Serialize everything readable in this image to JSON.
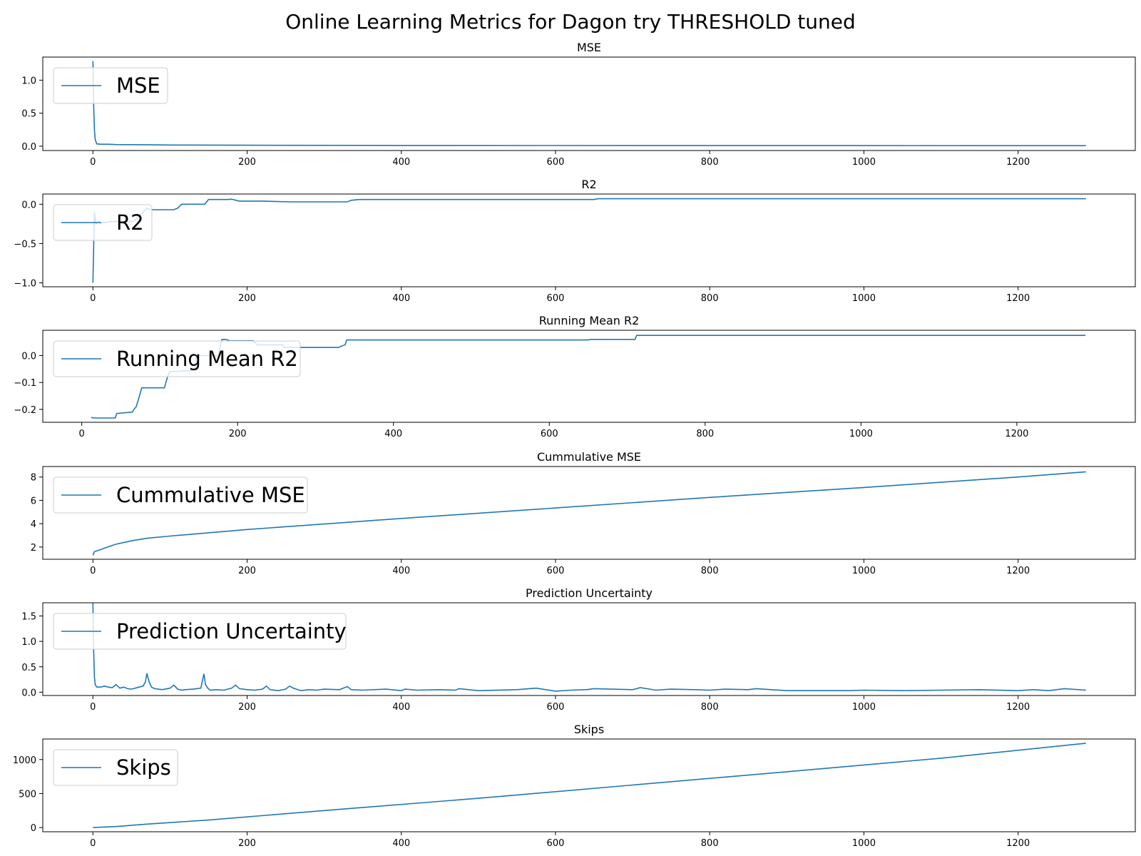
{
  "figure": {
    "title": "Online Learning Metrics for Dagon try THRESHOLD tuned",
    "line_color": "#1f77b4"
  },
  "chart_data": [
    {
      "type": "line",
      "title": "MSE",
      "xlabel": "",
      "ylabel": "",
      "legend": {
        "placement": "upper-left",
        "entries": [
          "MSE"
        ]
      },
      "xlim": [
        -65,
        1352
      ],
      "ylim": [
        -0.065,
        1.35
      ],
      "x_ticks": [
        0,
        200,
        400,
        600,
        800,
        1000,
        1200
      ],
      "y_ticks": [
        0.0,
        0.5,
        1.0
      ],
      "y_tick_labels": [
        "0.0",
        "0.5",
        "1.0"
      ],
      "grid": false,
      "series": [
        {
          "name": "MSE",
          "x": [
            0,
            1,
            2,
            3,
            5,
            10,
            20,
            30,
            50,
            70,
            100,
            200,
            400,
            600,
            800,
            1000,
            1200,
            1288
          ],
          "y": [
            1.29,
            0.6,
            0.25,
            0.1,
            0.035,
            0.03,
            0.03,
            0.025,
            0.024,
            0.022,
            0.018,
            0.015,
            0.012,
            0.011,
            0.01,
            0.009,
            0.008,
            0.008
          ]
        }
      ]
    },
    {
      "type": "line",
      "title": "R2",
      "xlabel": "",
      "ylabel": "",
      "legend": {
        "placement": "upper-left",
        "entries": [
          "R2"
        ]
      },
      "xlim": [
        -65,
        1352
      ],
      "ylim": [
        -1.05,
        0.13
      ],
      "x_ticks": [
        0,
        200,
        400,
        600,
        800,
        1000,
        1200
      ],
      "y_ticks": [
        -1.0,
        -0.5,
        0.0
      ],
      "y_tick_labels": [
        "−1.0",
        "−0.5",
        "0.0"
      ],
      "grid": false,
      "series": [
        {
          "name": "R2",
          "x": [
            0,
            2,
            4,
            8,
            10,
            25,
            30,
            40,
            50,
            55,
            60,
            65,
            70,
            75,
            80,
            105,
            110,
            115,
            145,
            150,
            175,
            180,
            190,
            220,
            255,
            330,
            335,
            345,
            650,
            655,
            1288
          ],
          "y": [
            -1.0,
            -0.1,
            -0.25,
            -0.22,
            -0.24,
            -0.22,
            -0.22,
            -0.22,
            -0.22,
            -0.2,
            -0.15,
            -0.1,
            -0.05,
            -0.07,
            -0.07,
            -0.07,
            -0.05,
            0.0,
            0.0,
            0.06,
            0.06,
            0.065,
            0.04,
            0.04,
            0.03,
            0.03,
            0.05,
            0.06,
            0.06,
            0.07,
            0.07
          ]
        }
      ]
    },
    {
      "type": "line",
      "title": "Running Mean R2",
      "xlabel": "",
      "ylabel": "",
      "legend": {
        "placement": "upper-left",
        "entries": [
          "Running Mean R2"
        ]
      },
      "xlim": [
        -50,
        1352
      ],
      "ylim": [
        -0.248,
        0.094
      ],
      "x_ticks": [
        0,
        200,
        400,
        600,
        800,
        1000,
        1200
      ],
      "y_ticks": [
        -0.2,
        -0.1,
        0.0
      ],
      "y_tick_labels": [
        "−0.2",
        "−0.1",
        "0.0"
      ],
      "grid": false,
      "series": [
        {
          "name": "Running Mean R2",
          "x": [
            12,
            15,
            20,
            25,
            30,
            40,
            43,
            45,
            65,
            67,
            70,
            72,
            74,
            75,
            77,
            106,
            108,
            110,
            113,
            145,
            147,
            175,
            180,
            185,
            190,
            220,
            225,
            258,
            260,
            330,
            333,
            338,
            340,
            650,
            653,
            710,
            712,
            1288
          ],
          "y": [
            -0.23,
            -0.232,
            -0.232,
            -0.232,
            -0.232,
            -0.232,
            -0.232,
            -0.215,
            -0.21,
            -0.2,
            -0.19,
            -0.17,
            -0.15,
            -0.14,
            -0.12,
            -0.12,
            -0.1,
            -0.08,
            -0.06,
            -0.055,
            0.0,
            0.0,
            0.06,
            0.06,
            0.055,
            0.055,
            0.04,
            0.04,
            0.03,
            0.03,
            0.035,
            0.04,
            0.058,
            0.058,
            0.06,
            0.06,
            0.075,
            0.075
          ]
        }
      ]
    },
    {
      "type": "line",
      "title": "Cummulative MSE",
      "xlabel": "",
      "ylabel": "",
      "legend": {
        "placement": "upper-left",
        "entries": [
          "Cummulative MSE"
        ]
      },
      "xlim": [
        -65,
        1352
      ],
      "ylim": [
        0.95,
        8.9
      ],
      "x_ticks": [
        0,
        200,
        400,
        600,
        800,
        1000,
        1200
      ],
      "y_ticks": [
        2,
        4,
        6,
        8
      ],
      "y_tick_labels": [
        "2",
        "4",
        "6",
        "8"
      ],
      "grid": false,
      "series": [
        {
          "name": "Cummulative MSE",
          "x": [
            0,
            1,
            2,
            10,
            20,
            30,
            50,
            70,
            100,
            200,
            400,
            600,
            800,
            1000,
            1200,
            1288
          ],
          "y": [
            1.29,
            1.45,
            1.6,
            1.78,
            2.02,
            2.24,
            2.53,
            2.75,
            2.94,
            3.5,
            4.45,
            5.35,
            6.25,
            7.1,
            8.0,
            8.45
          ]
        }
      ]
    },
    {
      "type": "line",
      "title": "Prediction Uncertainty",
      "xlabel": "",
      "ylabel": "",
      "legend": {
        "placement": "upper-left",
        "entries": [
          "Prediction Uncertainty"
        ]
      },
      "xlim": [
        -65,
        1352
      ],
      "ylim": [
        -0.065,
        1.76
      ],
      "x_ticks": [
        0,
        200,
        400,
        600,
        800,
        1000,
        1200
      ],
      "y_ticks": [
        0.0,
        0.5,
        1.0,
        1.5
      ],
      "y_tick_labels": [
        "0.0",
        "0.5",
        "1.0",
        "1.5"
      ],
      "grid": false,
      "series": [
        {
          "name": "Prediction Uncertainty",
          "x": [
            0,
            1,
            2,
            3,
            5,
            10,
            15,
            20,
            25,
            30,
            35,
            40,
            45,
            50,
            55,
            60,
            65,
            68,
            70,
            73,
            76,
            80,
            90,
            100,
            105,
            110,
            115,
            120,
            130,
            140,
            144,
            146,
            149,
            152,
            160,
            170,
            180,
            185,
            190,
            200,
            210,
            220,
            225,
            230,
            240,
            250,
            255,
            260,
            270,
            280,
            290,
            300,
            320,
            330,
            335,
            350,
            380,
            400,
            405,
            420,
            450,
            470,
            475,
            500,
            550,
            575,
            600,
            620,
            640,
            650,
            700,
            710,
            730,
            750,
            780,
            800,
            820,
            850,
            860,
            900,
            950,
            980,
            1000,
            1050,
            1100,
            1150,
            1200,
            1220,
            1240,
            1260,
            1288
          ],
          "y": [
            1.75,
            0.8,
            0.3,
            0.15,
            0.1,
            0.1,
            0.12,
            0.1,
            0.09,
            0.15,
            0.08,
            0.1,
            0.07,
            0.06,
            0.08,
            0.1,
            0.12,
            0.2,
            0.37,
            0.2,
            0.1,
            0.07,
            0.05,
            0.08,
            0.14,
            0.06,
            0.04,
            0.05,
            0.06,
            0.08,
            0.36,
            0.15,
            0.08,
            0.04,
            0.05,
            0.04,
            0.08,
            0.14,
            0.07,
            0.05,
            0.04,
            0.06,
            0.12,
            0.05,
            0.03,
            0.06,
            0.12,
            0.08,
            0.03,
            0.05,
            0.04,
            0.06,
            0.05,
            0.11,
            0.05,
            0.04,
            0.06,
            0.03,
            0.06,
            0.04,
            0.05,
            0.04,
            0.07,
            0.03,
            0.05,
            0.08,
            0.02,
            0.04,
            0.05,
            0.07,
            0.05,
            0.09,
            0.04,
            0.06,
            0.05,
            0.04,
            0.06,
            0.05,
            0.07,
            0.03,
            0.03,
            0.03,
            0.04,
            0.03,
            0.04,
            0.05,
            0.03,
            0.05,
            0.03,
            0.07,
            0.04
          ]
        }
      ]
    },
    {
      "type": "line",
      "title": "Skips",
      "xlabel": "",
      "ylabel": "",
      "legend": {
        "placement": "upper-left",
        "entries": [
          "Skips"
        ]
      },
      "xlim": [
        -65,
        1352
      ],
      "ylim": [
        -62,
        1302
      ],
      "x_ticks": [
        0,
        200,
        400,
        600,
        800,
        1000,
        1200
      ],
      "y_ticks": [
        0,
        500,
        1000
      ],
      "y_tick_labels": [
        "0",
        "500",
        "1000"
      ],
      "grid": false,
      "series": [
        {
          "name": "Skips",
          "x": [
            0,
            30,
            70,
            150,
            300,
            500,
            700,
            900,
            1100,
            1288
          ],
          "y": [
            0,
            15,
            50,
            110,
            250,
            430,
            625,
            820,
            1020,
            1240
          ]
        }
      ]
    }
  ]
}
